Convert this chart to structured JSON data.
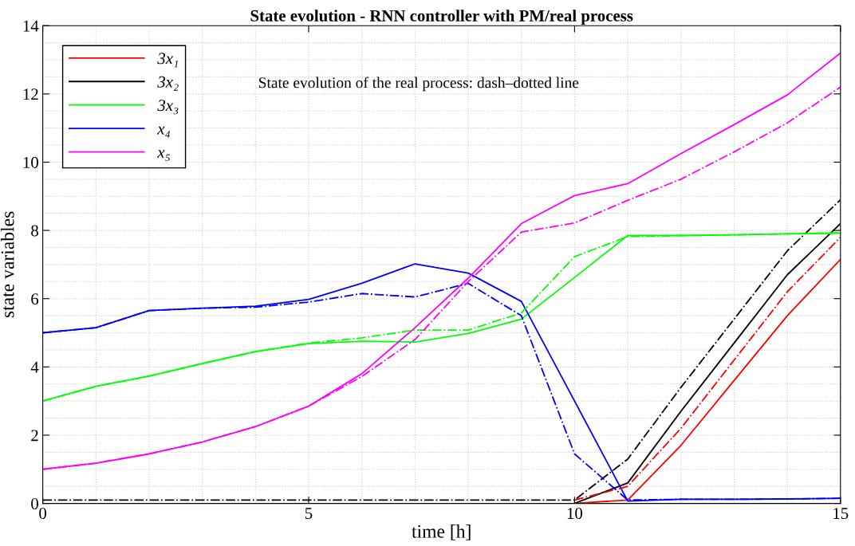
{
  "chart_data": {
    "type": "line",
    "title": "State evolution - RNN controller with PM/real process",
    "xlabel": "time [h]",
    "ylabel": "state variables",
    "annotations": [
      "State evolution of the real process: dash–dotted line"
    ],
    "x": [
      0,
      1,
      2,
      3,
      4,
      5,
      6,
      7,
      8,
      9,
      10,
      11,
      12,
      13,
      14,
      15
    ],
    "xlim": [
      0,
      15
    ],
    "xticks": [
      0,
      5,
      10,
      15
    ],
    "ylim": [
      0,
      14
    ],
    "yticks": [
      0,
      2,
      4,
      6,
      8,
      10,
      12,
      14
    ],
    "grid": true,
    "legend": "top left",
    "marker": "none",
    "series": [
      {
        "name": "3x₁",
        "color": "#ff0000",
        "line_style": "solid",
        "values": [
          null,
          null,
          null,
          null,
          null,
          null,
          null,
          null,
          null,
          null,
          0,
          0.1,
          1.7,
          3.6,
          5.5,
          7.15
        ]
      },
      {
        "name": "3x₂",
        "color": "#000000",
        "line_style": "solid",
        "values": [
          null,
          null,
          null,
          null,
          null,
          null,
          null,
          null,
          null,
          null,
          0,
          0.6,
          2.7,
          4.7,
          6.7,
          8.2
        ]
      },
      {
        "name": "3x₃",
        "color": "#00ff00",
        "line_style": "solid",
        "values": [
          3,
          3.43,
          3.73,
          4.1,
          4.45,
          4.68,
          4.75,
          4.73,
          4.98,
          5.4,
          6.62,
          7.85,
          7.85,
          7.87,
          7.9,
          7.92
        ]
      },
      {
        "name": "x₄",
        "color": "#0000ff",
        "line_style": "solid",
        "values": [
          5,
          5.15,
          5.65,
          5.72,
          5.78,
          5.98,
          6.45,
          7.02,
          6.75,
          5.92,
          3.0,
          0.07,
          0.12,
          0.12,
          0.13,
          0.15
        ]
      },
      {
        "name": "x₅",
        "color": "#ff00ff",
        "line_style": "solid",
        "values": [
          1,
          1.18,
          1.45,
          1.8,
          2.25,
          2.85,
          3.8,
          5.15,
          6.6,
          8.2,
          9.02,
          9.37,
          10.25,
          11.1,
          11.97,
          13.2
        ]
      },
      {
        "color": "#ff0000",
        "line_style": "dashdot",
        "values": [
          null,
          null,
          null,
          null,
          null,
          null,
          null,
          null,
          null,
          null,
          0.1,
          0.5,
          2.2,
          4.2,
          6.2,
          7.8
        ]
      },
      {
        "color": "#000000",
        "line_style": "dashdot",
        "values": [
          0.1,
          0.1,
          0.1,
          0.1,
          0.1,
          0.1,
          0.1,
          0.1,
          0.1,
          0.1,
          0.1,
          1.3,
          3.4,
          5.4,
          7.4,
          8.9
        ]
      },
      {
        "color": "#00ff00",
        "line_style": "dashdot",
        "values": [
          3,
          3.43,
          3.73,
          4.1,
          4.45,
          4.7,
          4.85,
          5.08,
          5.08,
          5.58,
          7.23,
          7.82,
          7.85,
          7.87,
          7.9,
          7.93
        ]
      },
      {
        "color": "#0000ff",
        "line_style": "dashdot",
        "values": [
          5,
          5.15,
          5.65,
          5.72,
          5.75,
          5.9,
          6.15,
          6.05,
          6.45,
          5.5,
          1.45,
          0.1,
          0.12,
          0.12,
          0.13,
          0.15
        ]
      },
      {
        "color": "#ff00ff",
        "line_style": "dashdot",
        "values": [
          1,
          1.18,
          1.45,
          1.8,
          2.25,
          2.85,
          3.72,
          4.8,
          6.5,
          7.95,
          8.22,
          8.88,
          9.5,
          10.3,
          11.15,
          12.2
        ]
      }
    ]
  }
}
